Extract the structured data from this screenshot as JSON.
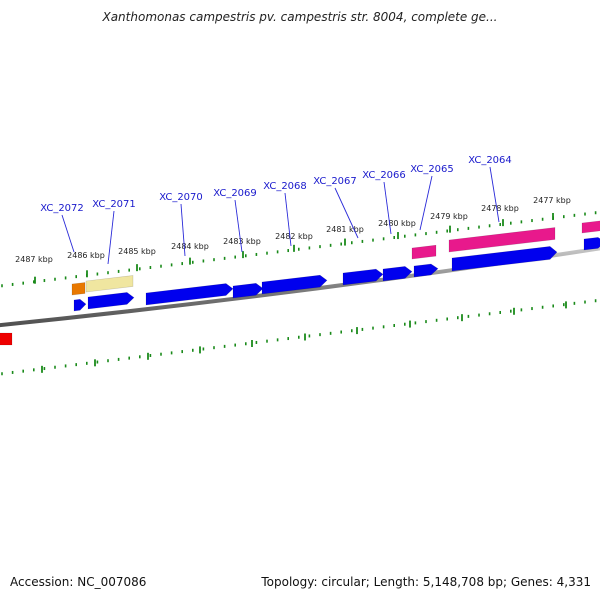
{
  "header": {
    "title": "Xanthomonas campestris pv. campestris str. 8004, complete ge..."
  },
  "footer": {
    "accession": "Accession: NC_007086",
    "stats": "Topology: circular; Length: 5,148,708 bp; Genes: 4,331"
  },
  "scale_labels": [
    "2487 kbp",
    "2486 kbp",
    "2485 kbp",
    "2484 kbp",
    "2483 kbp",
    "2482 kbp",
    "2481 kbp",
    "2480 kbp",
    "2479 kbp",
    "2478 kbp",
    "2477 kbp"
  ],
  "gene_labels": [
    "XC_2072",
    "XC_2071",
    "XC_2070",
    "XC_2069",
    "XC_2068",
    "XC_2067",
    "XC_2066",
    "XC_2065",
    "XC_2064"
  ],
  "colors": {
    "cds_blue": "#0000ee",
    "gene_pink": "#e8198c",
    "gene_orange": "#e87800",
    "gene_yellow": "#f0e6a0",
    "gene_red": "#ee0000",
    "tick_green": "#1a8a1a",
    "label_blue": "#1a1acc",
    "backbone_gray": "#808080"
  }
}
